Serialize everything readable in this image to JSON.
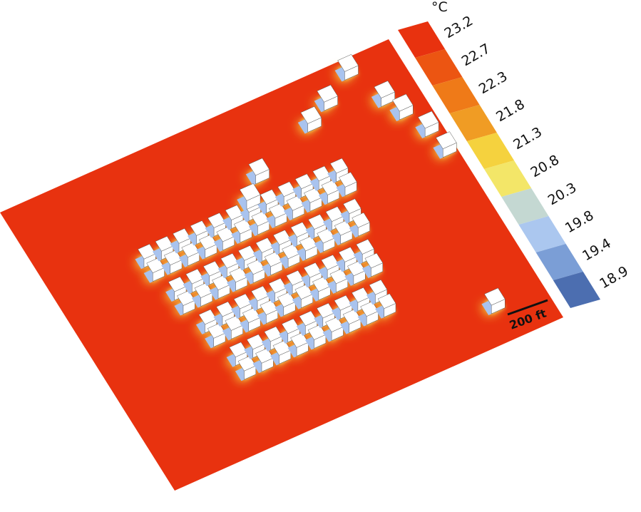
{
  "legend": {
    "unit": "°C",
    "stops": [
      {
        "label": "23.2",
        "color": "#e8320f"
      },
      {
        "label": "22.7",
        "color": "#ec5512"
      },
      {
        "label": "22.3",
        "color": "#ef7a18"
      },
      {
        "label": "21.8",
        "color": "#f09c24"
      },
      {
        "label": "21.3",
        "color": "#f5d23e"
      },
      {
        "label": "20.8",
        "color": "#f3e668"
      },
      {
        "label": "20.3",
        "color": "#c4d8d2"
      },
      {
        "label": "19.8",
        "color": "#abc7ef"
      },
      {
        "label": "19.4",
        "color": "#7b9ed6"
      },
      {
        "label": "18.9",
        "color": "#4c6eb0"
      }
    ]
  },
  "scale_bar": {
    "label": "200 ft"
  }
}
